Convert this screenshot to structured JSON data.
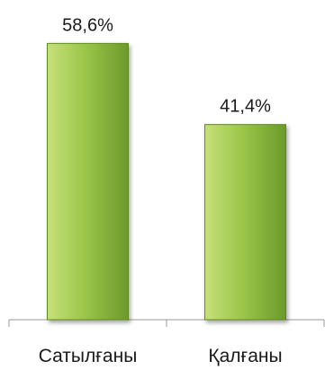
{
  "chart_data": {
    "type": "bar",
    "categories": [
      "Сатылғаны",
      "Қалғаны"
    ],
    "values": [
      58.6,
      41.4
    ],
    "data_labels": [
      "58,6%",
      "41,4%"
    ],
    "title": "",
    "xlabel": "",
    "ylabel": "",
    "ylim": [
      0,
      64
    ],
    "grid": false,
    "legend": "none",
    "colors": {
      "bar_fill_light": "#c7e07a",
      "bar_fill_mid": "#9cc74b",
      "bar_fill_dark": "#6b9a2a",
      "bar_edge": "#5f8a22",
      "axis": "#9a9a9a",
      "text": "#1a1a1a"
    }
  }
}
